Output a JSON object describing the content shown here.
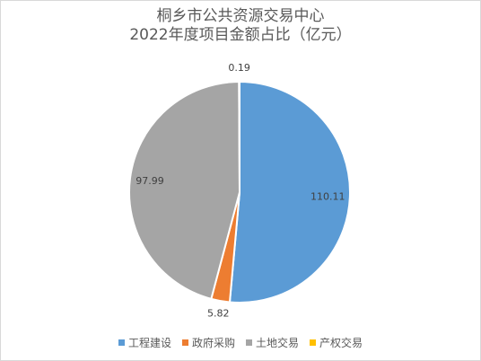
{
  "chart_data": {
    "type": "pie",
    "title_lines": [
      "桐乡市公共资源交易中心",
      "2022年度项目金额占比（亿元）"
    ],
    "categories": [
      "工程建设",
      "政府采购",
      "土地交易",
      "产权交易"
    ],
    "values": [
      110.11,
      5.82,
      97.99,
      0.19
    ],
    "data_labels": [
      "110.11",
      "5.82",
      "97.99",
      "0.19"
    ],
    "colors": [
      "#5b9bd5",
      "#ed7d31",
      "#a5a5a5",
      "#ffc000"
    ],
    "legend_position": "bottom",
    "start_angle_deg": 0,
    "direction": "clockwise"
  }
}
